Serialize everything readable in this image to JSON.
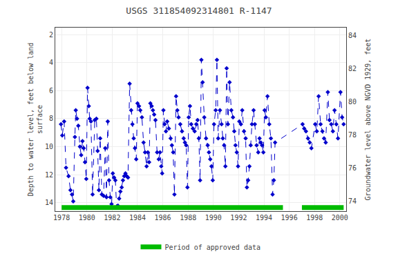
{
  "chart_data": {
    "type": "line",
    "title": "USGS 311854092314801 R-1147",
    "x_label": null,
    "y_label": "Depth to water level, feet below land\nsurface",
    "y2_label": "Groundwater level above NGVD 1929, feet",
    "xlim": [
      1977.5,
      2000.5
    ],
    "xticks": [
      1978,
      1980,
      1982,
      1984,
      1986,
      1988,
      1990,
      1992,
      1994,
      1996,
      1998,
      2000
    ],
    "ylim": [
      14.6,
      1.5
    ],
    "yticks": [
      2,
      4,
      6,
      8,
      10,
      12,
      14
    ],
    "y2lim": [
      73.4,
      84.5
    ],
    "y2ticks": [
      74,
      76,
      78,
      80,
      82,
      84
    ],
    "grid": true,
    "x": [
      1977.95,
      1978.05,
      1978.2,
      1978.35,
      1978.55,
      1978.7,
      1978.82,
      1978.92,
      1979.05,
      1979.12,
      1979.22,
      1979.32,
      1979.45,
      1979.55,
      1979.65,
      1979.75,
      1979.85,
      1979.95,
      1980.05,
      1980.15,
      1980.22,
      1980.32,
      1980.45,
      1980.62,
      1980.75,
      1980.85,
      1980.95,
      1981.05,
      1981.18,
      1981.32,
      1981.45,
      1981.55,
      1981.65,
      1981.75,
      1981.85,
      1981.95,
      1982.05,
      1982.15,
      1982.25,
      1982.35,
      1982.45,
      1982.55,
      1982.65,
      1982.75,
      1982.85,
      1982.95,
      1983.05,
      1983.15,
      1983.25,
      1983.38,
      1983.5,
      1983.6,
      1983.7,
      1983.8,
      1983.9,
      1984.0,
      1984.12,
      1984.22,
      1984.35,
      1984.48,
      1984.6,
      1984.72,
      1984.82,
      1984.92,
      1985.02,
      1985.12,
      1985.22,
      1985.32,
      1985.42,
      1985.55,
      1985.68,
      1985.78,
      1985.88,
      1985.95,
      1986.05,
      1986.15,
      1986.25,
      1986.35,
      1986.48,
      1986.62,
      1986.72,
      1986.82,
      1986.92,
      1987.05,
      1987.15,
      1987.25,
      1987.38,
      1987.52,
      1987.65,
      1987.75,
      1987.85,
      1987.95,
      1988.05,
      1988.15,
      1988.25,
      1988.38,
      1988.52,
      1988.65,
      1988.75,
      1988.85,
      1988.95,
      1989.05,
      1989.15,
      1989.28,
      1989.42,
      1989.55,
      1989.65,
      1989.75,
      1989.85,
      1989.95,
      1990.05,
      1990.18,
      1990.28,
      1990.38,
      1990.52,
      1990.65,
      1990.75,
      1990.85,
      1990.95,
      1991.05,
      1991.15,
      1991.28,
      1991.42,
      1991.55,
      1991.65,
      1991.75,
      1991.85,
      1991.95,
      1992.05,
      1992.18,
      1992.28,
      1992.42,
      1992.55,
      1992.65,
      1992.75,
      1992.85,
      1992.95,
      1993.05,
      1993.18,
      1993.28,
      1993.42,
      1993.55,
      1993.65,
      1993.75,
      1993.85,
      1993.95,
      1994.05,
      1994.15,
      1994.28,
      1994.42,
      1994.55,
      1994.68,
      1994.78,
      1994.88,
      1997.05,
      1997.18,
      1997.32,
      1997.48,
      1997.62,
      1997.75,
      1998.05,
      1998.18,
      1998.32,
      1998.48,
      1998.62,
      1998.75,
      1998.88,
      1999.05,
      1999.18,
      1999.32,
      1999.45,
      1999.58,
      1999.72,
      1999.85,
      2000.05,
      2000.18,
      2000.3
    ],
    "series": [
      {
        "color": "#0000cc",
        "marker": "diamond",
        "line_style": "dashed",
        "values": [
          8.4,
          9.2,
          8.2,
          11.5,
          12.1,
          13.1,
          13.4,
          13.9,
          9.3,
          7.4,
          8.0,
          8.5,
          10.0,
          10.6,
          9.6,
          10.1,
          11.1,
          12.3,
          5.8,
          7.1,
          8.0,
          8.2,
          13.4,
          8.1,
          8.0,
          10.3,
          13.1,
          9.4,
          13.4,
          13.5,
          10.1,
          13.6,
          8.2,
          12.4,
          13.6,
          14.1,
          11.9,
          12.2,
          12.4,
          14.3,
          14.2,
          13.7,
          13.2,
          12.9,
          12.4,
          12.1,
          11.9,
          12.1,
          12.2,
          5.5,
          7.4,
          8.4,
          9.4,
          10.1,
          10.9,
          6.9,
          7.1,
          7.4,
          7.9,
          9.7,
          10.4,
          11.4,
          10.4,
          11.1,
          6.9,
          7.1,
          7.4,
          7.7,
          8.1,
          10.4,
          10.9,
          10.4,
          11.4,
          11.9,
          7.4,
          8.4,
          8.9,
          8.2,
          8.7,
          9.4,
          9.9,
          10.4,
          13.4,
          6.4,
          7.4,
          7.9,
          8.4,
          8.9,
          9.4,
          9.7,
          9.9,
          12.9,
          7.9,
          7.1,
          8.4,
          8.7,
          8.9,
          8.4,
          8.1,
          9.4,
          12.4,
          3.8,
          5.4,
          7.9,
          9.4,
          9.9,
          10.4,
          10.9,
          11.4,
          12.4,
          8.4,
          7.4,
          3.8,
          9.4,
          7.4,
          8.4,
          9.4,
          9.9,
          11.4,
          4.4,
          8.4,
          5.4,
          7.4,
          7.9,
          8.9,
          9.9,
          10.4,
          11.4,
          8.2,
          8.4,
          7.4,
          8.9,
          9.4,
          12.9,
          12.4,
          11.4,
          9.9,
          8.4,
          7.4,
          8.4,
          9.9,
          10.4,
          9.4,
          9.7,
          9.9,
          10.4,
          7.4,
          7.9,
          6.4,
          8.4,
          9.4,
          13.4,
          12.4,
          9.7,
          8.4,
          8.7,
          8.9,
          9.4,
          9.7,
          10.1,
          8.4,
          8.9,
          6.4,
          8.4,
          8.9,
          9.4,
          9.7,
          6.1,
          8.1,
          8.4,
          8.9,
          7.4,
          8.4,
          9.4,
          6.1,
          7.9,
          8.4
        ]
      }
    ],
    "approved_periods": {
      "name": "Period of approved data",
      "color": "#00bb00",
      "periods": [
        [
          1978.0,
          1995.5
        ],
        [
          1997.0,
          2000.3
        ]
      ]
    },
    "legend": "bottom"
  }
}
